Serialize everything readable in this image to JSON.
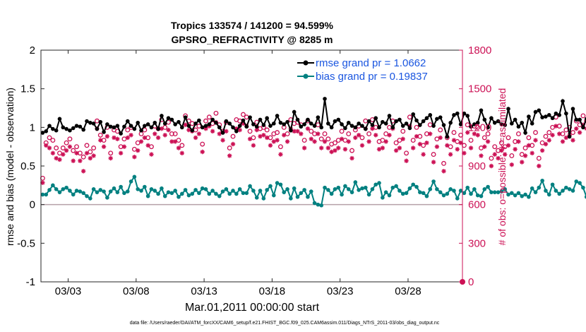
{
  "chart_data": {
    "type": "line",
    "title": "Tropics 133574 / 141200 = 94.599%",
    "subtitle": "GPSRO_REFRACTIVITY @ 8285 m",
    "xlabel": "Mar.01,2011 00:00:00 start",
    "ylabel": "rmse and bias (model - observation)",
    "ylabel_right": "# of obs: o=possible; ∗=assimilated",
    "ylim": [
      -1,
      2
    ],
    "ylim_right": [
      0,
      1800
    ],
    "xlim": [
      1,
      32
    ],
    "x_ticks": [
      {
        "x": 3,
        "label": "03/03"
      },
      {
        "x": 8,
        "label": "03/08"
      },
      {
        "x": 13,
        "label": "03/13"
      },
      {
        "x": 18,
        "label": "03/18"
      },
      {
        "x": 23,
        "label": "03/23"
      },
      {
        "x": 28,
        "label": "03/28"
      }
    ],
    "y_ticks": [
      "-1",
      "-0.5",
      "0",
      "0.5",
      "1",
      "1.5",
      "2"
    ],
    "y_ticks_right": [
      "0",
      "300",
      "600",
      "900",
      "1200",
      "1500",
      "1800"
    ],
    "zero_line": 0,
    "legend_position": "top-right",
    "series": [
      {
        "name": "rmse grand pr = 1.0662",
        "color": "#000000",
        "marker": "filled-circle",
        "axis": "left",
        "x_start": 1.125,
        "x_step": 0.25,
        "values": [
          0.93,
          0.95,
          1.02,
          0.98,
          0.96,
          1.11,
          1.0,
          0.98,
          0.96,
          0.99,
          1.02,
          1.01,
          0.97,
          1.08,
          1.06,
          1.05,
          0.98,
          1.07,
          0.94,
          1.04,
          1.01,
          1.0,
          1.02,
          0.92,
          1.01,
          1.08,
          1.02,
          0.98,
          1.06,
          0.96,
          1.02,
          1.04,
          1.0,
          1.06,
          0.98,
          1.15,
          1.05,
          1.12,
          1.1,
          1.04,
          1.07,
          1.0,
          1.13,
          1.02,
          0.96,
          1.05,
          1.09,
          1.0,
          1.02,
          1.04,
          1.1,
          1.06,
          1.0,
          0.93,
          1.08,
          1.05,
          1.0,
          0.95,
          1.02,
          1.09,
          1.01,
          1.13,
          1.04,
          1.01,
          1.1,
          1.03,
          1.12,
          1.02,
          1.05,
          1.15,
          1.06,
          1.04,
          1.07,
          0.96,
          1.2,
          1.1,
          1.01,
          1.04,
          1.1,
          1.05,
          1.02,
          1.13,
          1.0,
          1.37,
          1.05,
          1.0,
          1.08,
          1.1,
          1.04,
          0.99,
          1.06,
          1.02,
          1.0,
          1.05,
          1.02,
          0.98,
          1.08,
          1.03,
          1.12,
          1.0,
          1.07,
          1.05,
          1.15,
          1.0,
          1.08,
          1.1,
          1.02,
          1.05,
          0.99,
          1.17,
          1.09,
          1.03,
          1.08,
          1.12,
          1.16,
          1.02,
          1.11,
          1.13,
          1.03,
          0.88,
          1.06,
          1.16,
          1.18,
          1.04,
          1.18,
          1.15,
          1.01,
          1.04,
          1.06,
          1.22,
          1.1,
          1.0,
          1.12,
          1.06,
          1.08,
          1.04,
          1.03,
          1.24,
          1.05,
          1.1,
          1.01,
          1.06,
          0.93,
          1.14,
          1.05,
          1.2,
          1.22,
          1.13,
          1.14,
          1.16,
          1.12,
          1.18,
          1.16,
          1.34,
          1.18,
          0.88,
          1.24,
          1.1,
          1.1,
          1.0,
          1.11,
          1.16,
          1.08,
          1.02,
          1.2,
          1.04,
          1.12,
          0.98,
          1.1,
          1.0,
          1.04,
          1.12,
          1.02,
          1.09,
          1.07,
          1.16,
          1.05,
          0.96,
          1.09,
          1.0,
          1.04,
          0.96,
          1.09,
          1.0
        ]
      },
      {
        "name": "bias grand pr = 0.19837",
        "color": "#008080",
        "marker": "filled-circle",
        "axis": "left",
        "x_start": 1.125,
        "x_step": 0.25,
        "values": [
          0.13,
          0.13,
          0.19,
          0.25,
          0.2,
          0.16,
          0.2,
          0.22,
          0.18,
          0.13,
          0.18,
          0.17,
          0.15,
          0.11,
          0.08,
          0.2,
          0.16,
          0.19,
          0.17,
          0.09,
          0.17,
          0.21,
          0.16,
          0.23,
          0.15,
          0.17,
          0.3,
          0.36,
          0.2,
          0.18,
          0.23,
          0.11,
          0.2,
          0.18,
          0.14,
          0.21,
          0.11,
          0.16,
          0.15,
          0.18,
          0.1,
          0.14,
          0.19,
          0.12,
          0.14,
          0.19,
          0.15,
          0.21,
          0.2,
          0.14,
          0.18,
          0.14,
          0.11,
          0.17,
          0.2,
          0.14,
          0.18,
          0.14,
          0.2,
          0.15,
          0.15,
          0.24,
          0.18,
          0.09,
          0.18,
          0.08,
          0.19,
          0.24,
          0.12,
          0.28,
          0.26,
          0.16,
          0.2,
          0.08,
          0.21,
          0.1,
          0.15,
          0.19,
          0.1,
          0.17,
          0.02,
          0.0,
          -0.01,
          0.22,
          0.19,
          0.14,
          0.2,
          0.22,
          0.13,
          0.24,
          0.2,
          0.16,
          0.29,
          0.19,
          0.21,
          0.22,
          0.13,
          0.2,
          0.26,
          0.28,
          0.09,
          0.16,
          0.12,
          0.22,
          0.24,
          0.18,
          0.14,
          0.15,
          0.21,
          0.26,
          0.23,
          0.16,
          0.15,
          0.11,
          0.2,
          0.3,
          0.2,
          0.16,
          0.12,
          0.14,
          0.2,
          0.18,
          0.08,
          0.18,
          0.15,
          0.22,
          0.14,
          0.2,
          0.12,
          0.11,
          0.2,
          0.23,
          0.16,
          0.16,
          0.16,
          0.17,
          0.2,
          0.13,
          0.15,
          0.12,
          0.15,
          0.11,
          0.13,
          0.1,
          0.21,
          0.16,
          0.22,
          0.31,
          0.18,
          0.13,
          0.26,
          0.18,
          0.14,
          0.18,
          0.22,
          0.2,
          0.18,
          0.3,
          0.28,
          0.22,
          0.1,
          0.24,
          0.14,
          0.14,
          0.19,
          0.18,
          0.21,
          0.17,
          0.25,
          0.28,
          0.2,
          0.21,
          0.21,
          0.2,
          0.22,
          0.38,
          0.31,
          0.22,
          0.24,
          0.18,
          0.19,
          0.17,
          0.27,
          0.22,
          0.3,
          0.25,
          0.32,
          0.21,
          0.22,
          0.26,
          0.17,
          0.18
        ]
      },
      {
        "name": "# obs possible",
        "color": "#cc1155",
        "marker": "open-circle",
        "axis": "right",
        "x_start": 1.125,
        "x_step": 0.25,
        "values": [
          805,
          1080,
          1120,
          1100,
          1040,
          1000,
          1040,
          1080,
          1110,
          1020,
          1050,
          1000,
          970,
          1060,
          1010,
          1040,
          1250,
          1140,
          1100,
          1200,
          1000,
          1180,
          1170,
          1050,
          1110,
          1180,
          1200,
          1030,
          1080,
          1150,
          1180,
          1120,
          1050,
          1210,
          1190,
          1260,
          1200,
          1240,
          1150,
          1150,
          1100,
          1060,
          1290,
          1250,
          1230,
          1180,
          1210,
          1070,
          1250,
          1280,
          1230,
          1310,
          1220,
          1170,
          1240,
          1040,
          1130,
          1260,
          1250,
          1300,
          1280,
          1170,
          1120,
          1240,
          1190,
          1200,
          1180,
          1120,
          1150,
          1160,
          1050,
          1200,
          1150,
          1260,
          1230,
          1240,
          1220,
          1100,
          1250,
          1170,
          1150,
          1220,
          1110,
          1150,
          1110,
          1070,
          1080,
          1100,
          1170,
          1100,
          1150,
          1020,
          1180,
          1210,
          1120,
          1250,
          1150,
          1260,
          1200,
          1090,
          1100,
          1150,
          1200,
          1250,
          1080,
          1100,
          1170,
          1000,
          1280,
          1100,
          1200,
          1130,
          1060,
          1150,
          1220,
          990,
          1110,
          1180,
          920,
          1120,
          1050,
          1160,
          1090,
          1140,
          1060,
          1220,
          1100,
          1210,
          1200,
          1040,
          1120,
          1150,
          960,
          1050,
          1020,
          1080,
          1050,
          1120,
          980,
          1090,
          1150,
          990,
          1040,
          1120,
          1060,
          1160,
          960,
          1080,
          1130,
          1160,
          1200,
          1280,
          1210,
          1150,
          1180,
          1200,
          1160,
          1250,
          1220,
          1290,
          1250,
          1180,
          1150,
          1200,
          1140,
          1240,
          1120,
          1230,
          1200,
          1160,
          1310,
          1270,
          1180,
          1150,
          1200,
          1120,
          1230,
          1140,
          1180
        ]
      },
      {
        "name": "# obs assimilated",
        "color": "#cc1155",
        "marker": "asterisk",
        "axis": "right",
        "x_start": 1.125,
        "x_step": 0.25,
        "values": [
          770,
          1060,
          1040,
          1000,
          960,
          950,
          990,
          1020,
          1050,
          940,
          1000,
          940,
          860,
          1000,
          960,
          980,
          1190,
          1100,
          1050,
          1130,
          960,
          1120,
          1110,
          1000,
          1050,
          1120,
          1140,
          970,
          1020,
          1090,
          1120,
          1060,
          990,
          1150,
          1120,
          1190,
          1140,
          1180,
          1090,
          1090,
          1040,
          1000,
          1220,
          1180,
          1170,
          1120,
          1150,
          1010,
          1190,
          1210,
          1170,
          1240,
          1150,
          1100,
          1170,
          980,
          1070,
          1190,
          1180,
          1230,
          1210,
          1110,
          1060,
          1180,
          1130,
          1140,
          1120,
          1060,
          1090,
          1100,
          990,
          1140,
          1090,
          1190,
          1170,
          1170,
          1150,
          1040,
          1190,
          1110,
          1090,
          1150,
          1040,
          1090,
          1040,
          1010,
          1020,
          1040,
          1110,
          1030,
          1090,
          960,
          1120,
          1140,
          1060,
          1190,
          1090,
          1190,
          1140,
          1030,
          1040,
          1090,
          1140,
          1190,
          1020,
          1040,
          1110,
          940,
          1210,
          1040,
          1130,
          1070,
          990,
          1080,
          1150,
          930,
          1050,
          1120,
          860,
          1060,
          990,
          1100,
          1030,
          1080,
          1000,
          1160,
          1040,
          1150,
          1140,
          980,
          1050,
          1090,
          900,
          990,
          960,
          1020,
          990,
          1060,
          910,
          1030,
          1090,
          930,
          980,
          1060,
          1000,
          1100,
          900,
          1020,
          1070,
          1100,
          1140,
          1210,
          1150,
          1090,
          1120,
          1140,
          1100,
          1190,
          1160,
          1220,
          1190,
          1120,
          1090,
          1140,
          1080,
          1180,
          1060,
          1160,
          1140,
          1100,
          1250,
          1200,
          1110,
          1090,
          1140,
          1060,
          1170,
          1080,
          1120
        ]
      }
    ]
  },
  "footer_text": "data file: /Users/raeder/DAI/ATM_forcXX/CAM6_setup/f.e21.FHIST_BGC.f09_025.CAM6assim.011/Diags_NTrS_2011-03/obs_diag_output.nc"
}
